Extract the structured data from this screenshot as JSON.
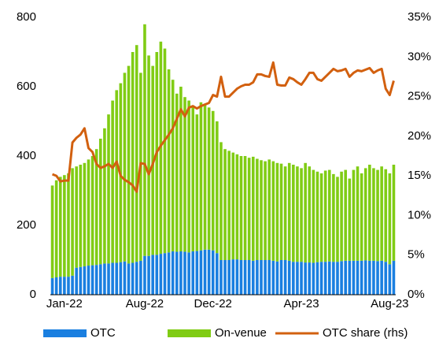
{
  "chart_data": {
    "type": "bar",
    "stacked": true,
    "categories": [
      null,
      null,
      null,
      "Jan-22",
      null,
      null,
      null,
      null,
      null,
      null,
      null,
      null,
      null,
      null,
      null,
      null,
      null,
      null,
      null,
      null,
      null,
      null,
      null,
      "Aug-22",
      null,
      null,
      null,
      null,
      null,
      null,
      null,
      null,
      null,
      null,
      null,
      null,
      null,
      null,
      null,
      null,
      "Dec-22",
      null,
      null,
      null,
      null,
      null,
      null,
      null,
      null,
      null,
      null,
      null,
      null,
      null,
      null,
      null,
      null,
      null,
      null,
      null,
      null,
      null,
      "Apr-23",
      null,
      null,
      null,
      null,
      null,
      null,
      null,
      null,
      null,
      null,
      null,
      null,
      null,
      null,
      null,
      null,
      null,
      null,
      null,
      null,
      null,
      "Aug-23",
      null
    ],
    "series": [
      {
        "name": "OTC",
        "type": "bar",
        "color": "#1a7fe0",
        "values": [
          48,
          50,
          52,
          52,
          52,
          55,
          78,
          80,
          82,
          84,
          85,
          86,
          88,
          90,
          90,
          92,
          92,
          94,
          96,
          90,
          92,
          95,
          98,
          112,
          112,
          115,
          115,
          118,
          120,
          122,
          125,
          124,
          125,
          124,
          122,
          125,
          126,
          128,
          130,
          130,
          128,
          120,
          100,
          100,
          100,
          102,
          102,
          100,
          100,
          100,
          98,
          100,
          100,
          100,
          100,
          98,
          96,
          100,
          100,
          98,
          95,
          95,
          95,
          93,
          93,
          92,
          94,
          95,
          95,
          96,
          95,
          95,
          97,
          98,
          98,
          98,
          98,
          98,
          99,
          98,
          98,
          97,
          98,
          95,
          88,
          98
        ]
      },
      {
        "name": "On-venue",
        "type": "bar",
        "color": "#80cc14",
        "values": [
          267,
          280,
          288,
          293,
          298,
          310,
          292,
          295,
          298,
          306,
          315,
          334,
          362,
          390,
          430,
          468,
          498,
          516,
          544,
          570,
          608,
          625,
          542,
          668,
          578,
          545,
          585,
          612,
          590,
          528,
          495,
          456,
          475,
          446,
          438,
          420,
          394,
          427,
          420,
          410,
          402,
          380,
          340,
          320,
          315,
          308,
          303,
          300,
          300,
          295,
          300,
          292,
          288,
          285,
          290,
          287,
          284,
          278,
          270,
          282,
          280,
          275,
          270,
          287,
          277,
          268,
          261,
          255,
          263,
          264,
          253,
          245,
          258,
          262,
          237,
          262,
          272,
          252,
          266,
          277,
          267,
          263,
          272,
          267,
          262,
          277
        ]
      },
      {
        "name": "OTC share (rhs)",
        "type": "line",
        "axis": "y2",
        "color": "#d2600f",
        "values": [
          15.2,
          15,
          14.3,
          14.4,
          14.4,
          19.2,
          19.8,
          20.2,
          21,
          18.5,
          18,
          16.5,
          16,
          16.2,
          16.5,
          16,
          16.8,
          15,
          14.5,
          14.2,
          13.8,
          13,
          16.6,
          16.5,
          15.2,
          16.5,
          18,
          18.8,
          19.5,
          20.2,
          21,
          22.2,
          23.4,
          22.5,
          23.6,
          23.8,
          23.5,
          23.8,
          24,
          24.2,
          25.2,
          25,
          27.5,
          25,
          25,
          25.5,
          26,
          26.3,
          26.5,
          26.5,
          26.8,
          27.8,
          27.8,
          27.6,
          27.5,
          29.3,
          26.5,
          26.4,
          26.4,
          27.4,
          27.2,
          26.8,
          26.5,
          27.2,
          28,
          28,
          27.2,
          27,
          27.5,
          28,
          28.5,
          28.2,
          28.3,
          28.5,
          27.5,
          28,
          28.3,
          28.2,
          28.4,
          28.6,
          28,
          28.3,
          28.5,
          26,
          25.2,
          27
        ]
      }
    ],
    "ylim": [
      0,
      800
    ],
    "yticks": [
      0,
      200,
      400,
      600,
      800
    ],
    "y2lim": [
      0,
      35
    ],
    "y2ticks": [
      {
        "value": 0,
        "label": "0%"
      },
      {
        "value": 5,
        "label": "5%"
      },
      {
        "value": 10,
        "label": "10%"
      },
      {
        "value": 15,
        "label": "15%"
      },
      {
        "value": 20,
        "label": "20%"
      },
      {
        "value": 25,
        "label": "25%"
      },
      {
        "value": 30,
        "label": "30%"
      },
      {
        "value": 35,
        "label": "35%"
      }
    ],
    "grid": false,
    "legend": "bottom"
  }
}
